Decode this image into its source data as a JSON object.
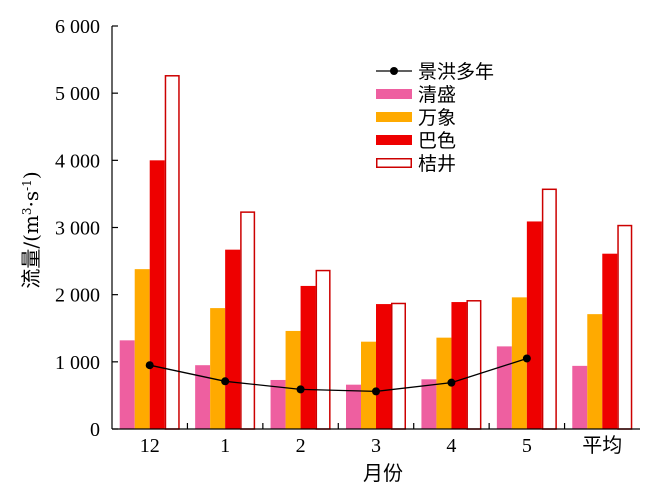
{
  "chart_data": {
    "type": "bar",
    "categories": [
      "12",
      "1",
      "2",
      "3",
      "4",
      "5",
      "平均"
    ],
    "xlabel": "月份",
    "ylabel": "流量/(m³·s⁻¹)",
    "ylabel_parts": {
      "main": "流量/(m",
      "sup1": "3",
      "mid": "·s",
      "sup2": "-1",
      "end": ")"
    },
    "ylim": [
      0,
      6000
    ],
    "yticks": [
      0,
      1000,
      2000,
      3000,
      4000,
      5000,
      6000
    ],
    "ytick_labels": [
      "0",
      "1 000",
      "2 000",
      "3 000",
      "4 000",
      "5 000",
      "6 000"
    ],
    "grid": false,
    "legend_position": "top-right",
    "series": [
      {
        "name": "清盛",
        "kind": "bar",
        "color": "#ee5fa0",
        "fill": "solid",
        "values": [
          1320,
          950,
          730,
          660,
          740,
          1230,
          940
        ]
      },
      {
        "name": "万象",
        "kind": "bar",
        "color": "#ffaa00",
        "fill": "solid",
        "values": [
          2380,
          1800,
          1460,
          1300,
          1360,
          1960,
          1710
        ]
      },
      {
        "name": "巴色",
        "kind": "bar",
        "color": "#ee0000",
        "fill": "solid",
        "values": [
          4000,
          2670,
          2130,
          1860,
          1890,
          3090,
          2610
        ]
      },
      {
        "name": "桔井",
        "kind": "bar",
        "color": "#cc0000",
        "fill": "hollow",
        "values": [
          5270,
          3240,
          2370,
          1880,
          1920,
          3580,
          3040
        ]
      }
    ],
    "line_series": {
      "name": "景洪多年",
      "kind": "line",
      "color": "#000000",
      "values": [
        950,
        710,
        590,
        560,
        690,
        1050,
        null
      ]
    }
  }
}
